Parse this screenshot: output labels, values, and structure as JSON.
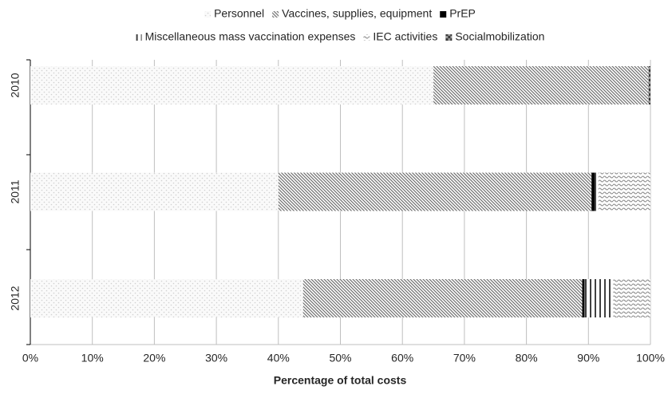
{
  "chart_data": {
    "type": "stacked-barh",
    "x_label": "Percentage of total costs",
    "categories": [
      "2010",
      "2011",
      "2012"
    ],
    "series": [
      {
        "name": "Personnel",
        "color": "#d0d0d0",
        "values": [
          65,
          40,
          44
        ]
      },
      {
        "name": "Vaccines, supplies, equipment",
        "color": "#707070",
        "values": [
          34.7,
          50.5,
          45
        ]
      },
      {
        "name": "PrEP",
        "color": "#000000",
        "values": [
          0,
          0.5,
          0.4
        ]
      },
      {
        "name": "Miscellaneous mass vaccination expenses",
        "color": "#404040",
        "values": [
          0,
          0.6,
          4.6
        ]
      },
      {
        "name": "IEC activities",
        "color": "#8a8a8a",
        "values": [
          0,
          8.4,
          6
        ]
      },
      {
        "name": "Socialmobilization",
        "color": "#3a3a3a",
        "values": [
          0.3,
          0,
          0
        ]
      }
    ],
    "xlim": [
      0,
      100
    ],
    "xticks": [
      {
        "value": 0,
        "label": "0%"
      },
      {
        "value": 10,
        "label": "10%"
      },
      {
        "value": 20,
        "label": "20%"
      },
      {
        "value": 30,
        "label": "30%"
      },
      {
        "value": 40,
        "label": "40%"
      },
      {
        "value": 50,
        "label": "50%"
      },
      {
        "value": 60,
        "label": "60%"
      },
      {
        "value": 70,
        "label": "70%"
      },
      {
        "value": 80,
        "label": "80%"
      },
      {
        "value": 90,
        "label": "90%"
      },
      {
        "value": 100,
        "label": "100%"
      }
    ],
    "grid": true,
    "legend": "top"
  }
}
